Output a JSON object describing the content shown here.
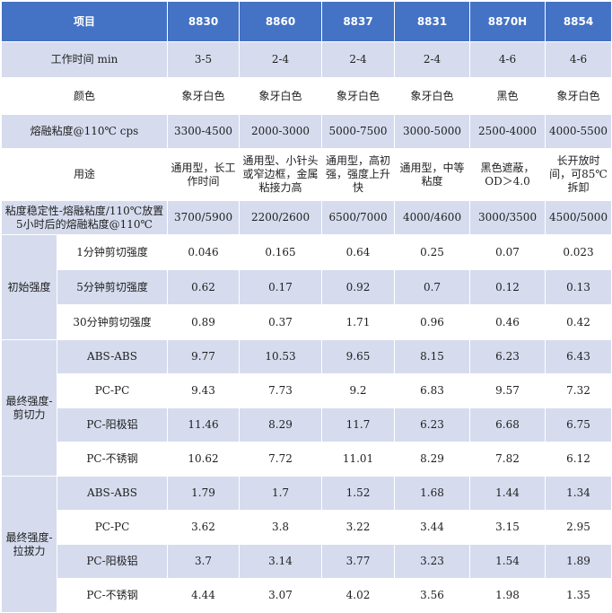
{
  "header": [
    "项目",
    "8830",
    "8860",
    "8837",
    "8831",
    "8870H",
    "8854"
  ],
  "basic_rows": [
    {
      "label": "工作时间 min",
      "values": [
        "3-5",
        "2-4",
        "2-4",
        "2-4",
        "4-6",
        "4-6"
      ]
    },
    {
      "label": "颜色",
      "values": [
        "象牙白色",
        "象牙白色",
        "象牙白色",
        "象牙白色",
        "黑色",
        "象牙白色"
      ]
    },
    {
      "label": "熔融粘度@110℃ cps",
      "values": [
        "3300-4500",
        "2000-3000",
        "5000-7500",
        "3000-5000",
        "2500-4000",
        "4000-5500"
      ]
    },
    {
      "label": "用途",
      "values": [
        "通用型，长工作时间",
        "通用型、小针头或窄边框，金属粘接力高",
        "通用型，高初强，强度上升快",
        "通用型，中等粘度",
        "黑色遮蔽，OD＞4.0",
        "长开放时间，可85℃拆卸"
      ]
    },
    {
      "label": "粘度稳定性-熔融粘度/110℃放置5小时后的熔融粘度@110℃",
      "values": [
        "3700/5900",
        "2200/2600",
        "6500/7000",
        "4000/4600",
        "3000/3500",
        "4500/5000"
      ]
    }
  ],
  "groups": [
    {
      "label": "初始强度",
      "rows": [
        {
          "label": "1分钟剪切强度",
          "values": [
            "0.046",
            "0.165",
            "0.64",
            "0.25",
            "0.07",
            "0.023"
          ]
        },
        {
          "label": "5分钟剪切强度",
          "values": [
            "0.62",
            "0.17",
            "0.92",
            "0.7",
            "0.12",
            "0.13"
          ]
        },
        {
          "label": "30分钟剪切强度",
          "values": [
            "0.89",
            "0.37",
            "1.71",
            "0.96",
            "0.46",
            "0.42"
          ]
        }
      ]
    },
    {
      "label": "最终强度-剪切力",
      "rows": [
        {
          "label": "ABS-ABS",
          "values": [
            "9.77",
            "10.53",
            "9.65",
            "8.15",
            "6.23",
            "6.43"
          ]
        },
        {
          "label": "PC-PC",
          "values": [
            "9.43",
            "7.73",
            "9.2",
            "6.83",
            "9.57",
            "7.32"
          ]
        },
        {
          "label": "PC-阳极铝",
          "values": [
            "11.46",
            "8.29",
            "11.7",
            "6.23",
            "6.68",
            "6.75"
          ]
        },
        {
          "label": "PC-不锈钢",
          "values": [
            "10.62",
            "7.72",
            "11.01",
            "8.29",
            "7.82",
            "6.12"
          ]
        }
      ]
    },
    {
      "label": "最终强度-拉拔力",
      "rows": [
        {
          "label": "ABS-ABS",
          "values": [
            "1.79",
            "1.7",
            "1.52",
            "1.68",
            "1.44",
            "1.34"
          ]
        },
        {
          "label": "PC-PC",
          "values": [
            "3.62",
            "3.8",
            "3.22",
            "3.44",
            "3.15",
            "2.95"
          ]
        },
        {
          "label": "PC-阳极铝",
          "values": [
            "3.7",
            "3.14",
            "3.77",
            "3.23",
            "1.54",
            "1.89"
          ]
        },
        {
          "label": "PC-不锈钢",
          "values": [
            "4.44",
            "3.07",
            "4.02",
            "3.56",
            "1.98",
            "1.35"
          ]
        }
      ]
    }
  ]
}
